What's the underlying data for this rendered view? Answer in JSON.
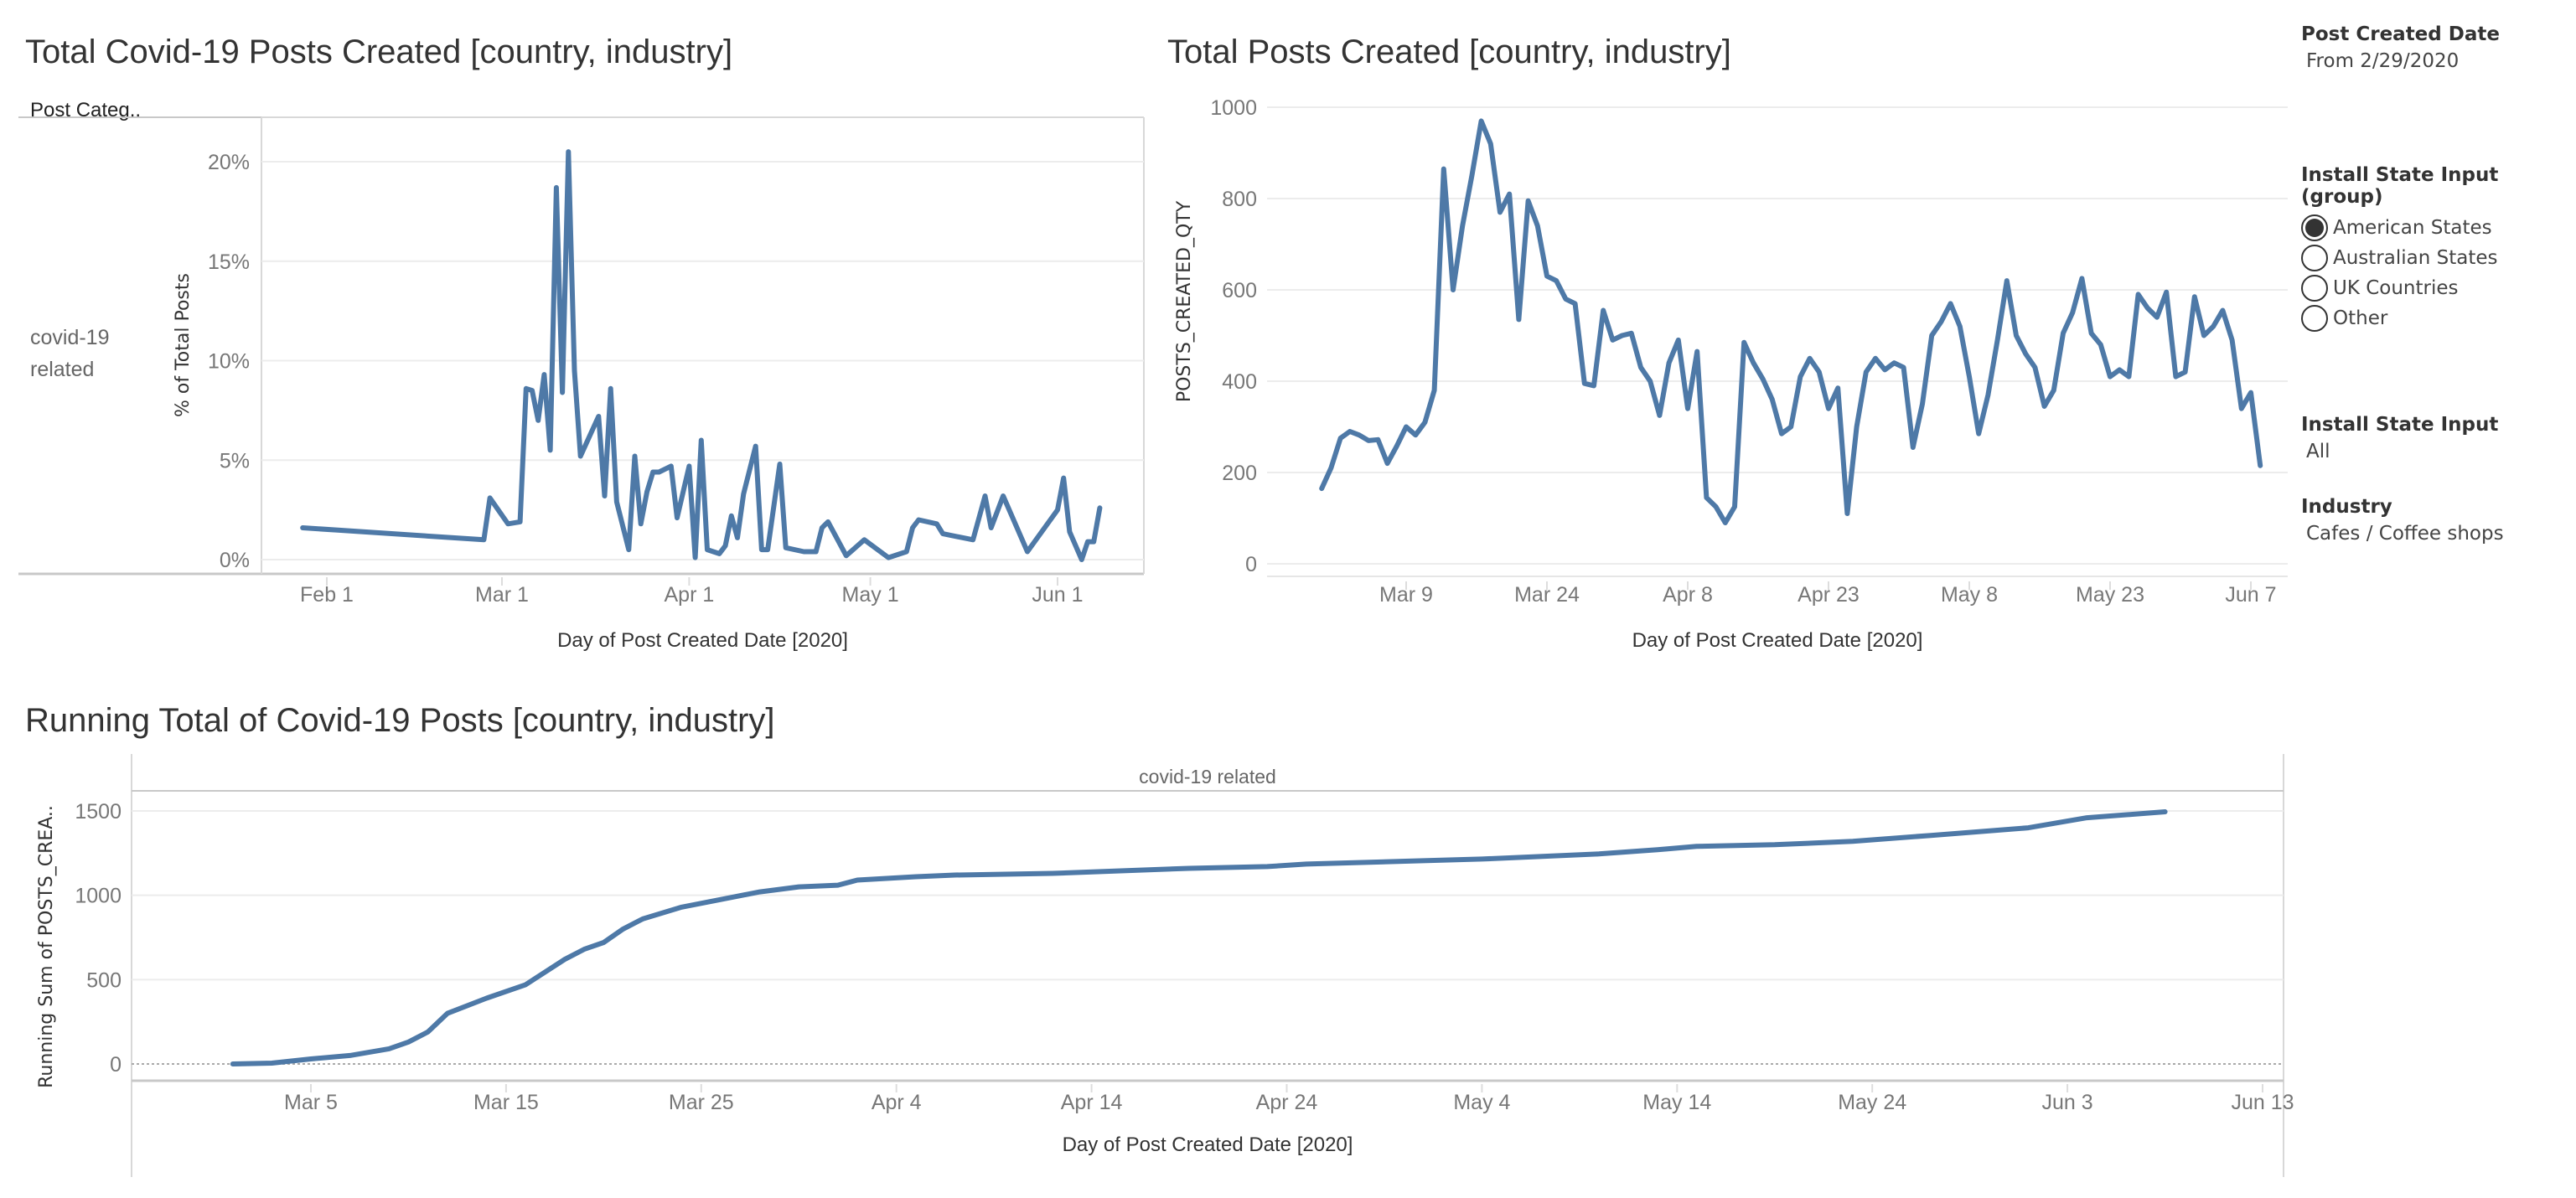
{
  "color": "#4e79a7",
  "charts": [
    {
      "type": "line",
      "title": "Total Covid-19 Posts Created [country, industry]",
      "row_header": "Post Categ..",
      "row_label": "covid-19 related",
      "xlabel": "Day of Post Created Date [2020]",
      "ylabel": "% of Total Posts",
      "ylim": [
        0,
        21.5
      ],
      "yticks": [
        "0%",
        "5%",
        "10%",
        "15%",
        "20%"
      ],
      "ytick_values": [
        0,
        5,
        10,
        15,
        20
      ],
      "xticks": [
        "Feb 1",
        "Mar 1",
        "Apr 1",
        "May 1",
        "Jun 1"
      ],
      "xtick_dates": [
        "2020-02-01",
        "2020-03-01",
        "2020-04-01",
        "2020-05-01",
        "2020-06-01"
      ],
      "points": [
        [
          "2020-01-28",
          1.6
        ],
        [
          "2020-02-27",
          1.0
        ],
        [
          "2020-02-28",
          3.1
        ],
        [
          "2020-03-02",
          1.8
        ],
        [
          "2020-03-04",
          1.9
        ],
        [
          "2020-03-05",
          8.6
        ],
        [
          "2020-03-06",
          8.5
        ],
        [
          "2020-03-07",
          7.0
        ],
        [
          "2020-03-08",
          9.3
        ],
        [
          "2020-03-09",
          5.5
        ],
        [
          "2020-03-10",
          18.7
        ],
        [
          "2020-03-11",
          8.4
        ],
        [
          "2020-03-12",
          20.5
        ],
        [
          "2020-03-13",
          9.5
        ],
        [
          "2020-03-14",
          5.2
        ],
        [
          "2020-03-17",
          7.2
        ],
        [
          "2020-03-18",
          3.2
        ],
        [
          "2020-03-19",
          8.6
        ],
        [
          "2020-03-20",
          2.9
        ],
        [
          "2020-03-22",
          0.5
        ],
        [
          "2020-03-23",
          5.2
        ],
        [
          "2020-03-24",
          1.8
        ],
        [
          "2020-03-25",
          3.4
        ],
        [
          "2020-03-26",
          4.4
        ],
        [
          "2020-03-27",
          4.4
        ],
        [
          "2020-03-29",
          4.7
        ],
        [
          "2020-03-30",
          2.1
        ],
        [
          "2020-04-01",
          4.7
        ],
        [
          "2020-04-02",
          0.1
        ],
        [
          "2020-04-03",
          6.0
        ],
        [
          "2020-04-04",
          0.5
        ],
        [
          "2020-04-06",
          0.3
        ],
        [
          "2020-04-07",
          0.7
        ],
        [
          "2020-04-08",
          2.2
        ],
        [
          "2020-04-09",
          1.1
        ],
        [
          "2020-04-10",
          3.3
        ],
        [
          "2020-04-12",
          5.7
        ],
        [
          "2020-04-13",
          0.5
        ],
        [
          "2020-04-14",
          0.5
        ],
        [
          "2020-04-16",
          4.8
        ],
        [
          "2020-04-17",
          0.6
        ],
        [
          "2020-04-20",
          0.4
        ],
        [
          "2020-04-22",
          0.4
        ],
        [
          "2020-04-23",
          1.6
        ],
        [
          "2020-04-24",
          1.9
        ],
        [
          "2020-04-27",
          0.2
        ],
        [
          "2020-04-30",
          1.0
        ],
        [
          "2020-05-04",
          0.1
        ],
        [
          "2020-05-07",
          0.4
        ],
        [
          "2020-05-08",
          1.6
        ],
        [
          "2020-05-09",
          2.0
        ],
        [
          "2020-05-12",
          1.8
        ],
        [
          "2020-05-13",
          1.3
        ],
        [
          "2020-05-18",
          1.0
        ],
        [
          "2020-05-20",
          3.2
        ],
        [
          "2020-05-21",
          1.6
        ],
        [
          "2020-05-23",
          3.2
        ],
        [
          "2020-05-27",
          0.4
        ],
        [
          "2020-06-01",
          2.5
        ],
        [
          "2020-06-02",
          4.1
        ],
        [
          "2020-06-03",
          1.4
        ],
        [
          "2020-06-05",
          0.0
        ],
        [
          "2020-06-06",
          0.9
        ],
        [
          "2020-06-07",
          0.9
        ],
        [
          "2020-06-08",
          2.6
        ]
      ]
    },
    {
      "type": "line",
      "title": "Total Posts Created [country, industry]",
      "xlabel": "Day of Post Created Date [2020]",
      "ylabel": "POSTS_CREATED_QTY",
      "ylim": [
        0,
        1000
      ],
      "yticks": [
        "0",
        "200",
        "400",
        "600",
        "800",
        "1000"
      ],
      "ytick_values": [
        0,
        200,
        400,
        600,
        800,
        1000
      ],
      "xticks": [
        "Mar 9",
        "Mar 24",
        "Apr 8",
        "Apr 23",
        "May 8",
        "May 23",
        "Jun 7"
      ],
      "xtick_dates": [
        "2020-03-09",
        "2020-03-24",
        "2020-04-08",
        "2020-04-23",
        "2020-05-08",
        "2020-05-23",
        "2020-06-07"
      ],
      "dates_from": "2020-02-29",
      "values": [
        165,
        210,
        275,
        290,
        282,
        270,
        272,
        220,
        258,
        300,
        282,
        310,
        380,
        865,
        600,
        740,
        850,
        970,
        920,
        770,
        810,
        535,
        795,
        740,
        630,
        620,
        580,
        570,
        395,
        390,
        555,
        490,
        500,
        505,
        430,
        400,
        325,
        440,
        490,
        340,
        465,
        145,
        125,
        90,
        125,
        485,
        440,
        405,
        360,
        285,
        300,
        410,
        450,
        420,
        340,
        385,
        110,
        300,
        420,
        450,
        425,
        440,
        430,
        255,
        350,
        500,
        530,
        570,
        520,
        410,
        285,
        370,
        490,
        620,
        500,
        460,
        430,
        345,
        380,
        505,
        550,
        625,
        505,
        480,
        410,
        425,
        410,
        590,
        560,
        540,
        595,
        410,
        420,
        585,
        500,
        520,
        555,
        490,
        340,
        375,
        215
      ]
    },
    {
      "type": "line",
      "title": "Running Total of Covid-19 Posts [country, industry]",
      "panel_header": "covid-19 related",
      "xlabel": "Day of Post Created Date [2020]",
      "ylabel": "Running Sum of POSTS_CREA..",
      "ylim": [
        -80,
        1600
      ],
      "yticks": [
        "0",
        "500",
        "1000",
        "1500"
      ],
      "ytick_values": [
        0,
        500,
        1000,
        1500
      ],
      "xticks": [
        "Mar 5",
        "Mar 15",
        "Mar 25",
        "Apr 4",
        "Apr 14",
        "Apr 24",
        "May 4",
        "May 14",
        "May 24",
        "Jun 3",
        "Jun 13"
      ],
      "xtick_dates": [
        "2020-03-05",
        "2020-03-15",
        "2020-03-25",
        "2020-04-04",
        "2020-04-14",
        "2020-04-24",
        "2020-05-04",
        "2020-05-14",
        "2020-05-24",
        "2020-06-03",
        "2020-06-13"
      ],
      "points": [
        [
          "2020-03-01",
          0
        ],
        [
          "2020-03-03",
          5
        ],
        [
          "2020-03-05",
          30
        ],
        [
          "2020-03-07",
          50
        ],
        [
          "2020-03-09",
          90
        ],
        [
          "2020-03-10",
          130
        ],
        [
          "2020-03-11",
          190
        ],
        [
          "2020-03-12",
          300
        ],
        [
          "2020-03-14",
          390
        ],
        [
          "2020-03-16",
          470
        ],
        [
          "2020-03-18",
          620
        ],
        [
          "2020-03-19",
          680
        ],
        [
          "2020-03-20",
          720
        ],
        [
          "2020-03-21",
          800
        ],
        [
          "2020-03-22",
          860
        ],
        [
          "2020-03-24",
          930
        ],
        [
          "2020-03-26",
          975
        ],
        [
          "2020-03-28",
          1020
        ],
        [
          "2020-03-30",
          1050
        ],
        [
          "2020-04-01",
          1060
        ],
        [
          "2020-04-02",
          1090
        ],
        [
          "2020-04-05",
          1110
        ],
        [
          "2020-04-07",
          1120
        ],
        [
          "2020-04-12",
          1130
        ],
        [
          "2020-04-19",
          1160
        ],
        [
          "2020-04-23",
          1170
        ],
        [
          "2020-04-25",
          1185
        ],
        [
          "2020-05-01",
          1205
        ],
        [
          "2020-05-04",
          1215
        ],
        [
          "2020-05-10",
          1245
        ],
        [
          "2020-05-13",
          1270
        ],
        [
          "2020-05-15",
          1290
        ],
        [
          "2020-05-19",
          1300
        ],
        [
          "2020-05-23",
          1320
        ],
        [
          "2020-05-27",
          1355
        ],
        [
          "2020-06-01",
          1400
        ],
        [
          "2020-06-04",
          1460
        ],
        [
          "2020-06-08",
          1495
        ]
      ]
    }
  ],
  "filters": {
    "date": {
      "label": "Post Created Date",
      "value": "From 2/29/2020"
    },
    "group": {
      "label": "Install State Input (group)",
      "options": [
        "American States",
        "Australian States",
        "UK Countries",
        "Other"
      ],
      "selected": "American States"
    },
    "state": {
      "label": "Install State Input",
      "value": "All"
    },
    "industry": {
      "label": "Industry",
      "value": "Cafes / Coffee shops"
    }
  }
}
